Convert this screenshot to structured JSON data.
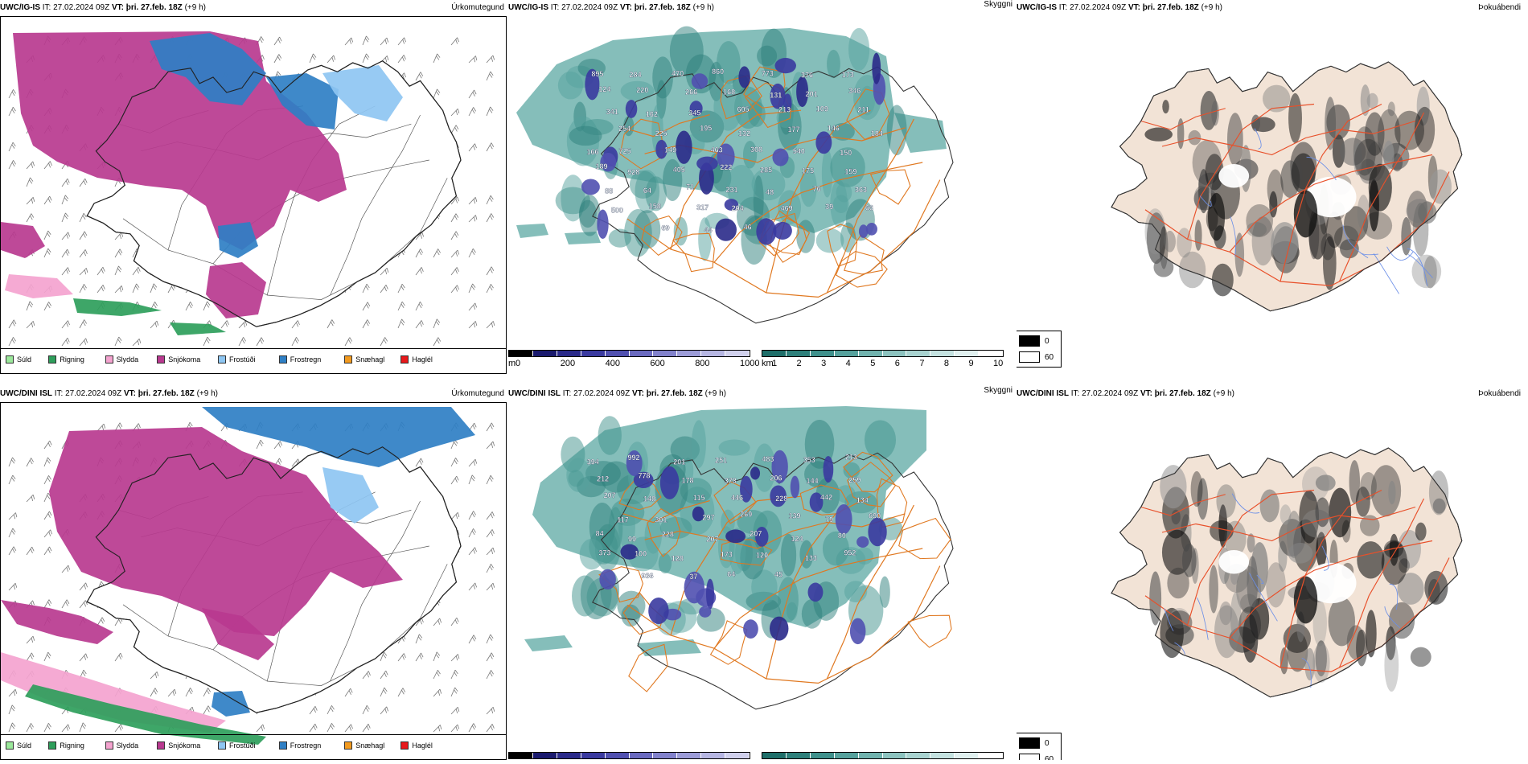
{
  "rows": [
    {
      "precip": {
        "model": "UWC/IG-IS",
        "it": "IT: 27.02.2024 09Z",
        "vt_label": "VT:",
        "vt": "þri. 27.feb. 18Z",
        "lead": "(+9 h)",
        "title": "Úrkomutegund"
      },
      "cloud": {
        "model": "UWC/IG-IS",
        "it": "IT: 27.02.2024 09Z",
        "vt_label": "VT:",
        "vt": "þri. 27.feb. 18Z",
        "lead": "(+9 h)",
        "title": "Skyggni"
      },
      "fog": {
        "model": "UWC/IG-IS",
        "it": "IT: 27.02.2024 09Z",
        "vt_label": "VT:",
        "vt": "þri. 27.feb. 18Z",
        "lead": "(+9 h)",
        "title": "Þokuábendi"
      },
      "ceiling_labels": [
        "895",
        "284",
        "470",
        "860",
        "773",
        "376",
        "173",
        "124",
        "220",
        "266",
        "168",
        "131",
        "201",
        "346",
        "341",
        "162",
        "345",
        "605",
        "213",
        "109",
        "211",
        "254",
        "225",
        "195",
        "132",
        "177",
        "146",
        "184",
        "725",
        "149",
        "463",
        "308",
        "540",
        "150",
        "166",
        "928",
        "405",
        "222",
        "285",
        "175",
        "159",
        "189",
        "64",
        "71",
        "231",
        "48",
        "76",
        "363",
        "88",
        "158",
        "317",
        "204",
        "469",
        "39",
        "66",
        "500",
        "69",
        "44",
        "46"
      ]
    },
    {
      "precip": {
        "model": "UWC/DINI ISL",
        "it": "IT: 27.02.2024 09Z",
        "vt_label": "VT:",
        "vt": "þri. 27.feb. 18Z",
        "lead": "(+9 h)",
        "title": "Úrkomutegund"
      },
      "cloud": {
        "model": "UWC/DINI ISL",
        "it": "IT: 27.02.2024 09Z",
        "vt_label": "VT:",
        "vt": "þri. 27.feb. 18Z",
        "lead": "(+9 h)",
        "title": "Skyggni"
      },
      "fog": {
        "model": "UWC/DINI ISL",
        "it": "IT: 27.02.2024 09Z",
        "vt_label": "VT:",
        "vt": "þri. 27.feb. 18Z",
        "lead": "(+9 h)",
        "title": "Þokuábendi"
      },
      "ceiling_labels": [
        "394",
        "992",
        "201",
        "251",
        "483",
        "353",
        "213",
        "212",
        "778",
        "178",
        "378",
        "206",
        "144",
        "259",
        "207",
        "148",
        "115",
        "446",
        "228",
        "442",
        "134",
        "117",
        "301",
        "297",
        "269",
        "139",
        "79",
        "690",
        "99",
        "228",
        "207",
        "207",
        "124",
        "80",
        "84",
        "100",
        "128",
        "173",
        "120",
        "133",
        "952",
        "373",
        "936",
        "37",
        "64",
        "45"
      ]
    }
  ],
  "precip_legend": [
    {
      "label": "Súld",
      "color": "#9be89b"
    },
    {
      "label": "Rigning",
      "color": "#2e9e5b"
    },
    {
      "label": "Slydda",
      "color": "#f4a3cf"
    },
    {
      "label": "Snjókoma",
      "color": "#b8398f"
    },
    {
      "label": "Frostúði",
      "color": "#8ec6f2"
    },
    {
      "label": "Frostregn",
      "color": "#2f7fc4"
    },
    {
      "label": "Snæhagl",
      "color": "#f29a1f"
    },
    {
      "label": "Haglél",
      "color": "#e8191c"
    }
  ],
  "ceiling_bar": {
    "unit": "m",
    "ticks": [
      "0",
      "200",
      "400",
      "600",
      "800",
      "1000"
    ],
    "colors": [
      "#000000",
      "#1a1a6e",
      "#2a2a8a",
      "#3a3aa0",
      "#5050b0",
      "#6a6ac0",
      "#8282cc",
      "#9c9cd8",
      "#b6b6e2",
      "#d0d0ec"
    ]
  },
  "visibility_bar": {
    "unit": "km",
    "ticks": [
      "1",
      "2",
      "3",
      "4",
      "5",
      "6",
      "7",
      "8",
      "9",
      "10"
    ],
    "colors": [
      "#1f6f6a",
      "#2e807b",
      "#3f918c",
      "#56a29d",
      "#70b3ae",
      "#8cc3bf",
      "#a8d3d0",
      "#c4e2e0",
      "#e0f0ef",
      "#ffffff"
    ]
  },
  "fog_legend": [
    {
      "label": "0",
      "color": "#000000"
    },
    {
      "label": "60",
      "color": "#ffffff"
    }
  ]
}
